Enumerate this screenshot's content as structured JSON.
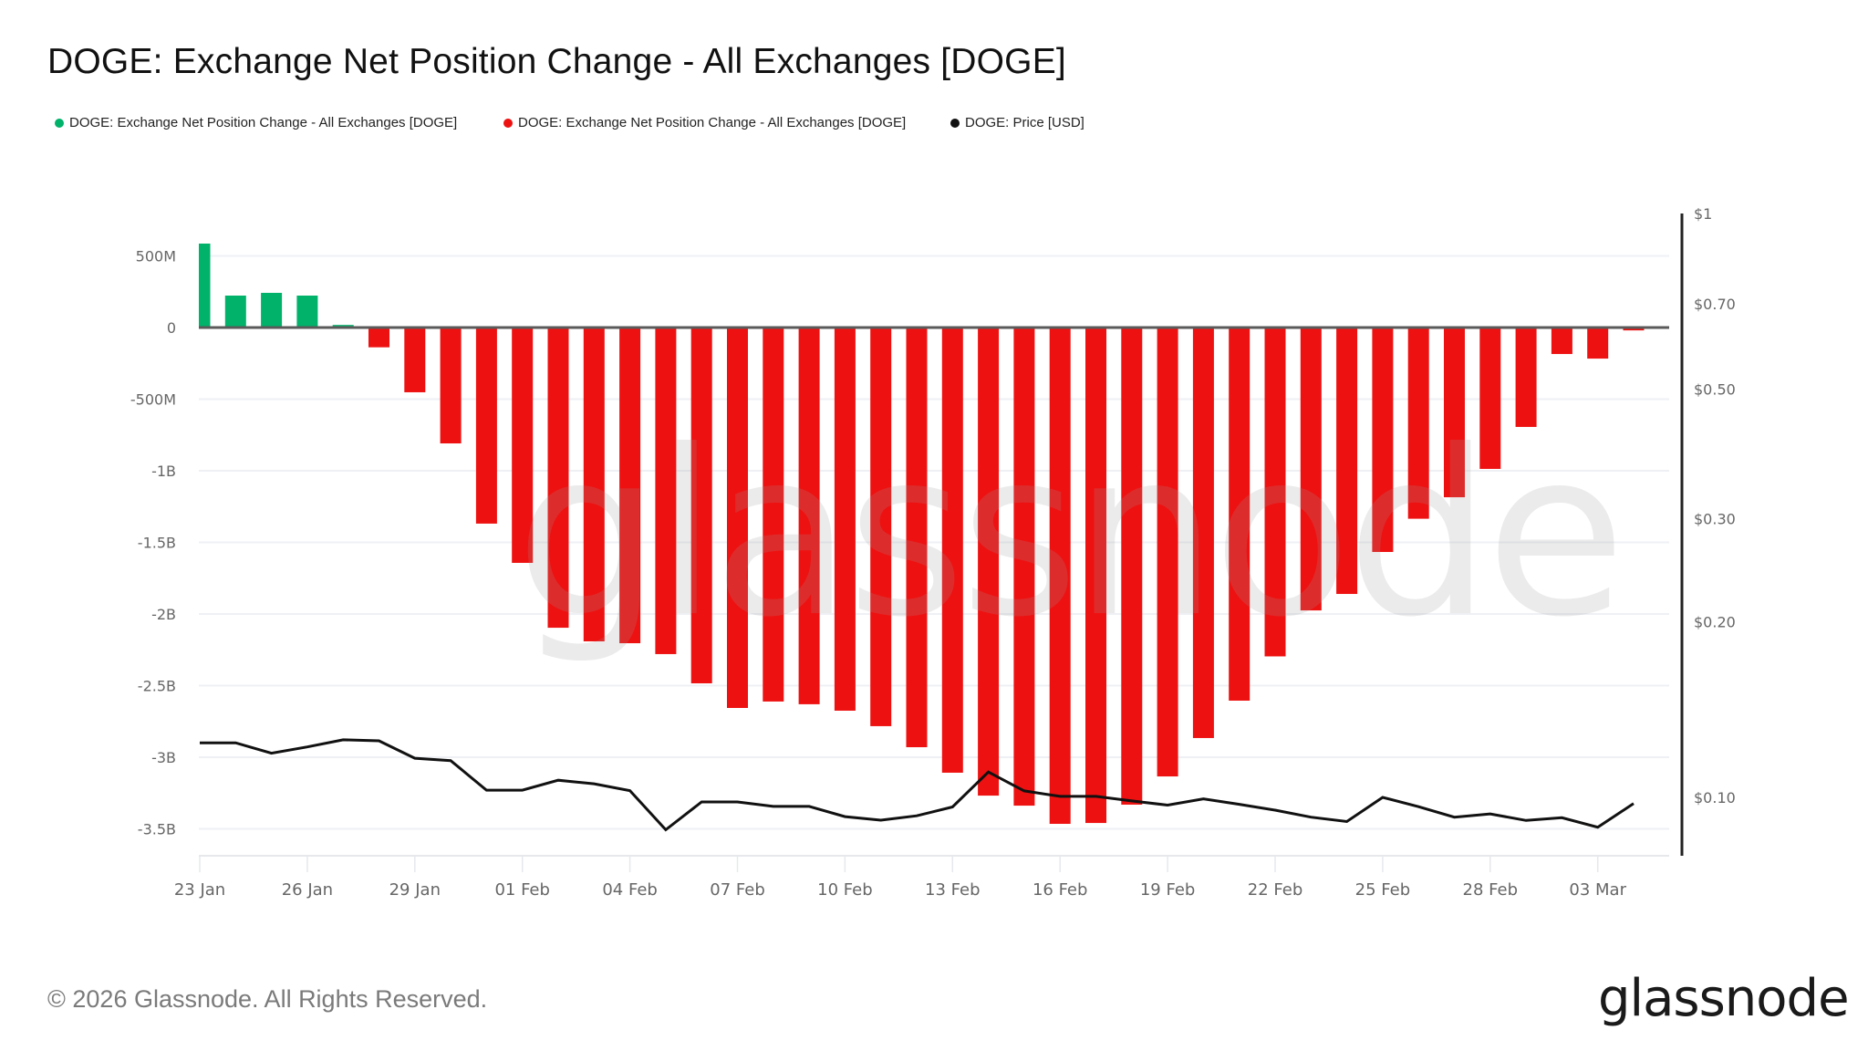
{
  "title": "DOGE: Exchange Net Position Change - All Exchanges [DOGE]",
  "legend": [
    {
      "label": "DOGE: Exchange Net Position Change - All Exchanges [DOGE]",
      "color": "#00b26a"
    },
    {
      "label": "DOGE: Exchange Net Position Change - All Exchanges [DOGE]",
      "color": "#ee1111"
    },
    {
      "label": "DOGE: Price [USD]",
      "color": "#111111"
    }
  ],
  "footer": "© 2026 Glassnode. All Rights Reserved.",
  "logo": "glassnode",
  "watermark": "glassnode",
  "chart_data": {
    "type": "bar",
    "title": "DOGE: Exchange Net Position Change - All Exchanges [DOGE]",
    "xlabel": "",
    "ylabel": "",
    "grid": true,
    "legend_position": "top-left",
    "x": [
      "23 Jan",
      "24 Jan",
      "25 Jan",
      "26 Jan",
      "27 Jan",
      "28 Jan",
      "29 Jan",
      "30 Jan",
      "31 Jan",
      "01 Feb",
      "02 Feb",
      "03 Feb",
      "04 Feb",
      "05 Feb",
      "06 Feb",
      "07 Feb",
      "08 Feb",
      "09 Feb",
      "10 Feb",
      "11 Feb",
      "12 Feb",
      "13 Feb",
      "14 Feb",
      "15 Feb",
      "16 Feb",
      "17 Feb",
      "18 Feb",
      "19 Feb",
      "20 Feb",
      "21 Feb",
      "22 Feb",
      "23 Feb",
      "24 Feb",
      "25 Feb",
      "26 Feb",
      "27 Feb",
      "28 Feb",
      "01 Mar",
      "02 Mar",
      "03 Mar",
      "04 Mar"
    ],
    "x_tick_labels": [
      "23 Jan",
      "26 Jan",
      "29 Jan",
      "01 Feb",
      "04 Feb",
      "07 Feb",
      "10 Feb",
      "13 Feb",
      "16 Feb",
      "19 Feb",
      "22 Feb",
      "25 Feb",
      "28 Feb",
      "03 Mar"
    ],
    "left_axis": {
      "unit": "DOGE (millions)",
      "ylim": [
        -3650,
        700
      ],
      "ticks": [
        500,
        0,
        -500,
        -1000,
        -1500,
        -2000,
        -2500,
        -3000,
        -3500
      ],
      "tick_labels": [
        "500M",
        "0",
        "-500M",
        "-1B",
        "-1.5B",
        "-2B",
        "-2.5B",
        "-3B",
        "-3.5B"
      ]
    },
    "right_axis": {
      "unit": "USD",
      "scale": "log",
      "ylim": [
        0.074,
        1
      ],
      "ticks": [
        1,
        0.7,
        0.5,
        0.3,
        0.2,
        0.1
      ],
      "tick_labels": [
        "$1",
        "$0.70",
        "$0.50",
        "$0.30",
        "$0.20",
        "$0.10"
      ]
    },
    "series": [
      {
        "name": "DOGE: Exchange Net Position Change - All Exchanges [DOGE]",
        "type": "bar",
        "axis": "left",
        "positive_color": "#00b26a",
        "negative_color": "#ee1111",
        "values": [
          586,
          223,
          242,
          223,
          18,
          -138,
          -452,
          -809,
          -1369,
          -1643,
          -2096,
          -2191,
          -2204,
          -2280,
          -2484,
          -2656,
          -2611,
          -2630,
          -2675,
          -2783,
          -2930,
          -3108,
          -3268,
          -3338,
          -3465,
          -3459,
          -3331,
          -3134,
          -2866,
          -2605,
          -2296,
          -1975,
          -1860,
          -1567,
          -1335,
          -1185,
          -987,
          -694,
          -185,
          -217,
          -20
        ]
      },
      {
        "name": "DOGE: Price [USD]",
        "type": "line",
        "axis": "right",
        "color": "#111111",
        "values": [
          0.124,
          0.124,
          0.119,
          0.122,
          0.1255,
          0.125,
          0.1167,
          0.1156,
          0.1029,
          0.1029,
          0.107,
          0.1055,
          0.1027,
          0.088,
          0.0982,
          0.0982,
          0.0965,
          0.0965,
          0.0927,
          0.0914,
          0.093,
          0.0963,
          0.1105,
          0.1026,
          0.1004,
          0.1004,
          0.0986,
          0.097,
          0.0994,
          0.0973,
          0.0951,
          0.0925,
          0.0909,
          0.1,
          0.0964,
          0.0925,
          0.0937,
          0.0913,
          0.0923,
          0.0889,
          0.0976
        ]
      }
    ]
  }
}
